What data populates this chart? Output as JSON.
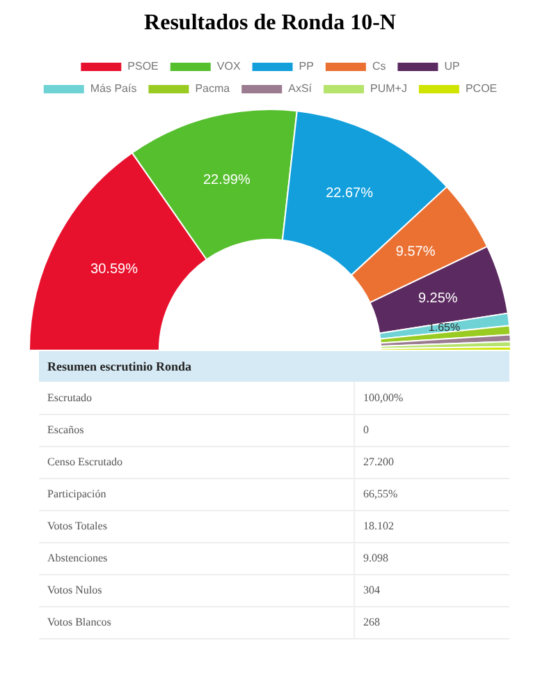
{
  "chart_data": [
    {
      "type": "donut",
      "title": "Resultados de Ronda 10-N",
      "categories": [
        "PSOE",
        "VOX",
        "PP",
        "Cs",
        "UP",
        "Más País",
        "Pacma",
        "AxSí",
        "PUM+J",
        "PCOE"
      ],
      "values": [
        30.59,
        22.99,
        22.67,
        9.57,
        9.25,
        1.65,
        1.2,
        0.9,
        0.7,
        0.48
      ],
      "colors": [
        "#e8112d",
        "#56bf2e",
        "#129fdc",
        "#eb7133",
        "#5b2a60",
        "#6fd3d6",
        "#9acb22",
        "#9a7b8f",
        "#b5e36c",
        "#cfe400"
      ],
      "value_labels": [
        "30.59%",
        "22.99%",
        "22.67%",
        "9.57%",
        "9.25%",
        "1.65%",
        null,
        null,
        null,
        null
      ],
      "legend": "top"
    },
    {
      "type": "other",
      "title": "Resumen escrutinio Ronda",
      "annotations": [
        "Escrutado",
        "100,00%",
        "Escaños",
        "0",
        "Censo Escrutado",
        "27.200",
        "Participación",
        "66,55%",
        "Votos Totales",
        "18.102",
        "Abstenciones",
        "9.098",
        "Votos Nulos",
        "304",
        "Votos Blancos",
        "268"
      ]
    }
  ]
}
